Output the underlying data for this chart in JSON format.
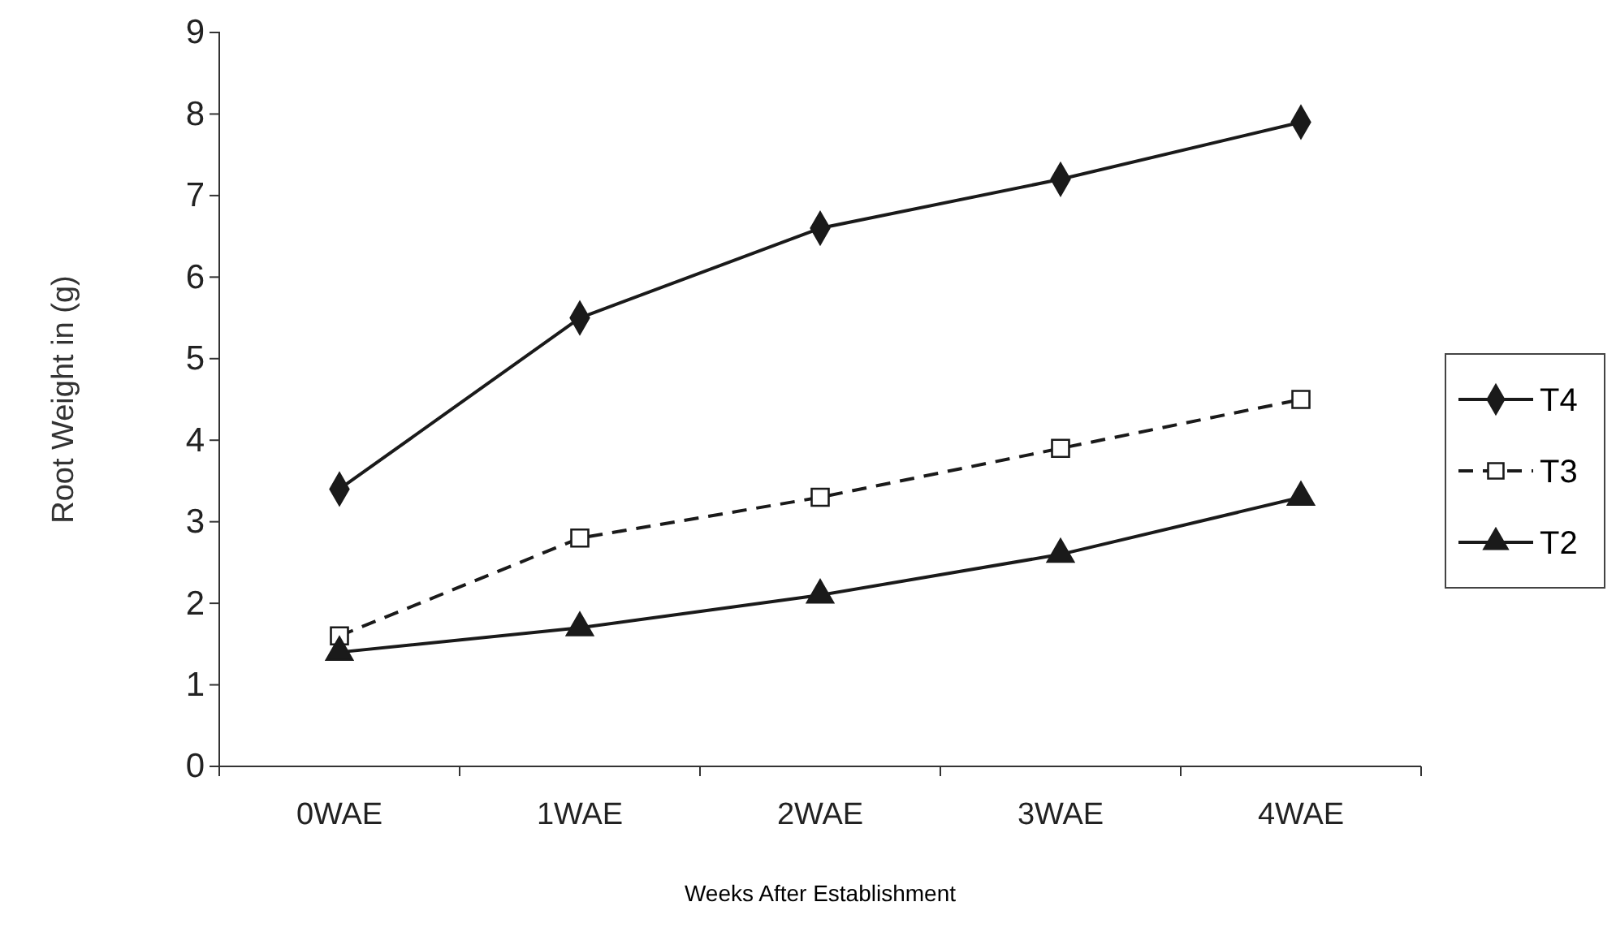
{
  "chart_data": {
    "type": "line",
    "xlabel": "Weeks After Establishment",
    "ylabel": "Root Weight in (g)",
    "categories": [
      "0WAE",
      "1WAE",
      "2WAE",
      "3WAE",
      "4WAE"
    ],
    "series": [
      {
        "name": "T4",
        "color": "#1a1a1a",
        "values": [
          3.4,
          5.5,
          6.6,
          7.2,
          7.9
        ],
        "marker": "diamond",
        "line_style": "solid"
      },
      {
        "name": "T3",
        "color": "#1a1a1a",
        "values": [
          1.6,
          2.8,
          3.3,
          3.9,
          4.5
        ],
        "marker": "square",
        "line_style": "dashed"
      },
      {
        "name": "T2",
        "color": "#1a1a1a",
        "values": [
          1.4,
          1.7,
          2.1,
          2.6,
          3.3
        ],
        "marker": "triangle",
        "line_style": "solid"
      }
    ],
    "ylim": [
      0,
      9
    ],
    "yticks": [
      0,
      1,
      2,
      3,
      4,
      5,
      6,
      7,
      8,
      9
    ],
    "grid": false,
    "legend": "right"
  }
}
